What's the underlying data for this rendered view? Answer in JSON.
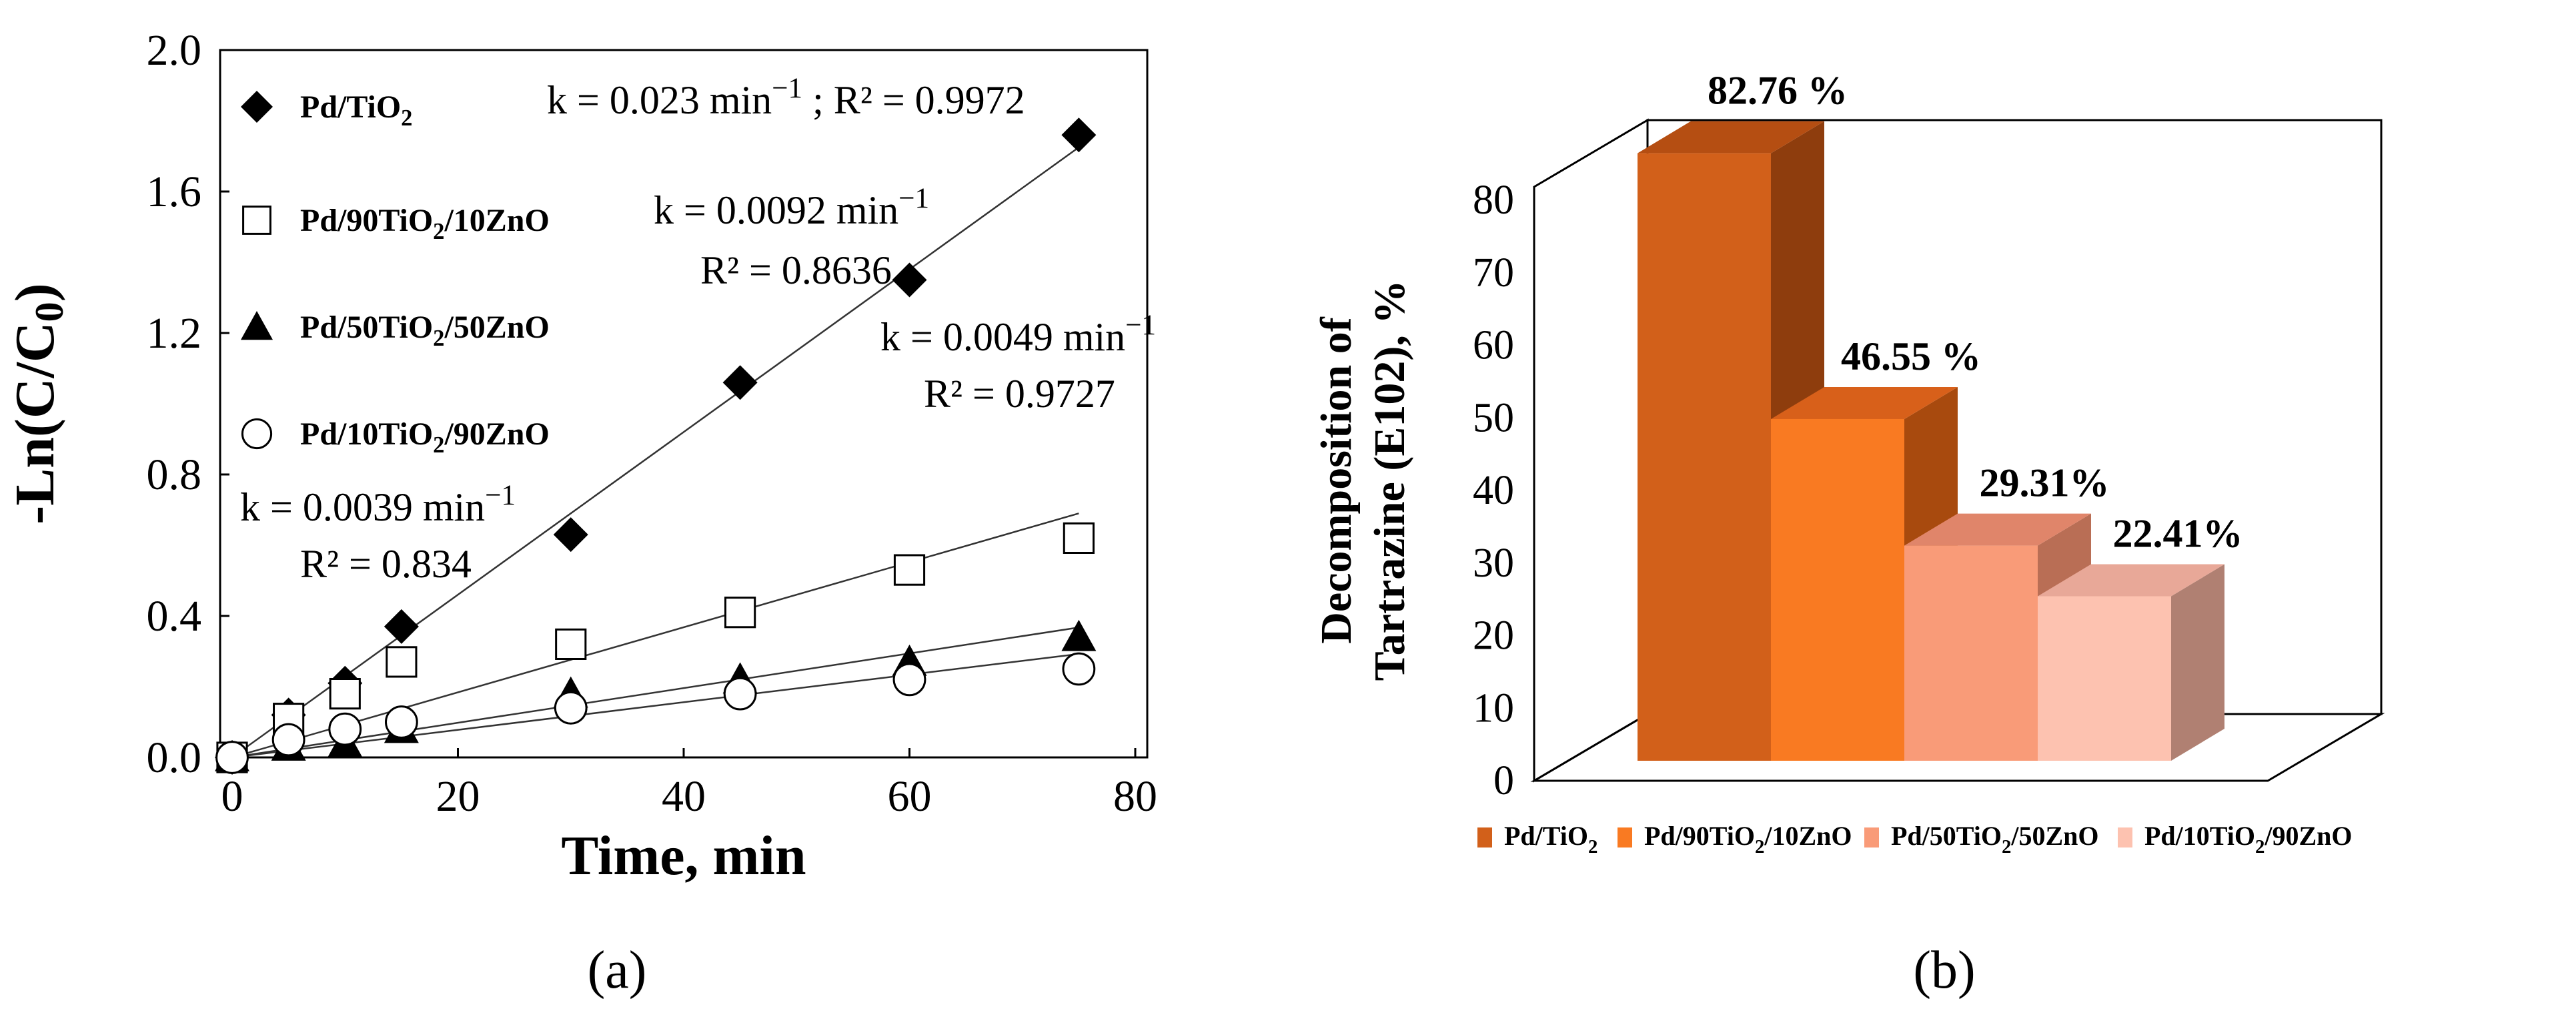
{
  "panels": {
    "a": "(a)",
    "b": "(b)"
  },
  "chart_data": [
    {
      "type": "scatter",
      "xlabel": "Time, min",
      "ylabel": {
        "main": "-Ln(C/C",
        "sub": "0",
        "close": ")"
      },
      "xlim": [
        0,
        80
      ],
      "ylim": [
        0,
        2.0
      ],
      "xticks": [
        "0",
        "20",
        "40",
        "60",
        "80"
      ],
      "yticks": [
        "0.0",
        "0.4",
        "0.8",
        "1.2",
        "1.6",
        "2.0"
      ],
      "grid": false,
      "legend_position": "top-left",
      "series": [
        {
          "name": "Pd/TiO2",
          "legend_parts": [
            "Pd/TiO",
            "2",
            ""
          ],
          "marker": "diamond-filled",
          "x": [
            0,
            5,
            10,
            15,
            30,
            45,
            60,
            75
          ],
          "y": [
            0.0,
            0.12,
            0.21,
            0.37,
            0.63,
            1.06,
            1.35,
            1.76
          ],
          "fit_slope": 0.023,
          "annotation": {
            "k": "k = 0.023 min",
            "exp": "−1",
            "r2": "; R² = 0.9972"
          }
        },
        {
          "name": "Pd/90TiO2/10ZnO",
          "legend_parts": [
            "Pd/90TiO",
            "2",
            "/10ZnO"
          ],
          "marker": "square-open",
          "x": [
            0,
            5,
            10,
            15,
            30,
            45,
            60,
            75
          ],
          "y": [
            0.0,
            0.11,
            0.18,
            0.27,
            0.32,
            0.41,
            0.53,
            0.62
          ],
          "fit_slope": 0.0092,
          "annotation": {
            "k": "k = 0.0092 min",
            "exp": "−1",
            "r2": "R² = 0.8636"
          }
        },
        {
          "name": "Pd/50TiO2/50ZnO",
          "legend_parts": [
            "Pd/50TiO",
            "2",
            "/50ZnO"
          ],
          "marker": "triangle-filled",
          "x": [
            0,
            5,
            10,
            15,
            30,
            45,
            60,
            75
          ],
          "y": [
            0.0,
            0.03,
            0.04,
            0.08,
            0.18,
            0.22,
            0.27,
            0.34
          ],
          "fit_slope": 0.0049,
          "annotation": {
            "k": "k = 0.0049 min",
            "exp": "−1",
            "r2": "R² = 0.9727"
          }
        },
        {
          "name": "Pd/10TiO2/90ZnO",
          "legend_parts": [
            "Pd/10TiO",
            "2",
            "/90ZnO"
          ],
          "marker": "circle-open",
          "x": [
            0,
            5,
            10,
            15,
            30,
            45,
            60,
            75
          ],
          "y": [
            0.0,
            0.05,
            0.08,
            0.1,
            0.14,
            0.18,
            0.22,
            0.25
          ],
          "fit_slope": 0.0039,
          "annotation": {
            "k": "k = 0.0039 min",
            "exp": "−1",
            "r2": "R² = 0.834"
          }
        }
      ]
    },
    {
      "type": "bar",
      "style": "3d",
      "ylabel": [
        "Decomposition of",
        "Tartrazine (E102), %"
      ],
      "ylim": [
        0,
        80
      ],
      "yticks": [
        "0",
        "10",
        "20",
        "30",
        "40",
        "50",
        "60",
        "70",
        "80"
      ],
      "legend_position": "bottom",
      "categories": [
        "Pd/TiO2",
        "Pd/90TiO2/10ZnO",
        "Pd/50TiO2/50ZnO",
        "Pd/10TiO2/90ZnO"
      ],
      "values": [
        82.76,
        46.55,
        29.31,
        22.41
      ],
      "value_labels": [
        "82.76 %",
        "46.55 %",
        "29.31%",
        "22.41%"
      ],
      "legend_parts": [
        [
          "Pd/TiO",
          "2",
          ""
        ],
        [
          "Pd/90TiO",
          "2",
          "/10ZnO"
        ],
        [
          "Pd/50TiO",
          "2",
          "/50ZnO"
        ],
        [
          "Pd/10TiO",
          "2",
          "/90ZnO"
        ]
      ],
      "colors": [
        {
          "front": "#D2601A",
          "side": "#8E3D0D",
          "top": "#B54E12"
        },
        {
          "front": "#F97A22",
          "side": "#A84A0E",
          "top": "#D8601A"
        },
        {
          "front": "#F99B78",
          "side": "#B96E55",
          "top": "#E0856A"
        },
        {
          "front": "#FDC2B0",
          "side": "#B08072",
          "top": "#E8A898"
        }
      ]
    }
  ]
}
